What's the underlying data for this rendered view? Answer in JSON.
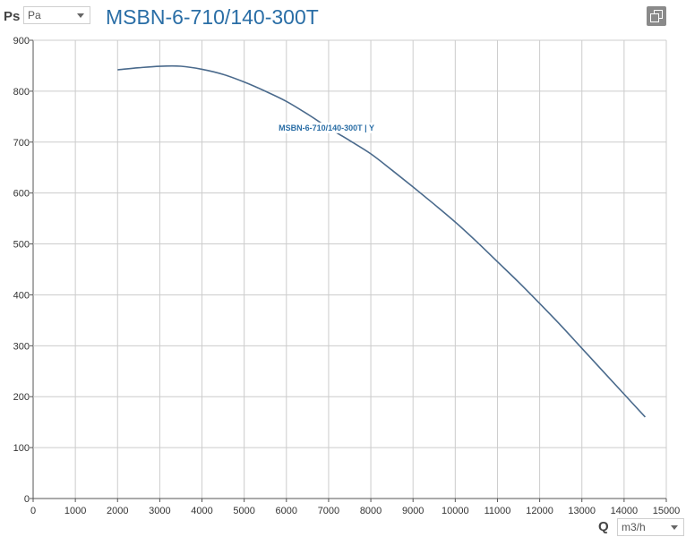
{
  "header": {
    "y_axis_name": "Ps",
    "y_unit": "Pa",
    "title": "MSBN-6-710/140-300T",
    "copy_icon": "copy-icon"
  },
  "footer": {
    "x_axis_name": "Q",
    "x_unit": "m3/h"
  },
  "chart_data": {
    "type": "line",
    "title": "MSBN-6-710/140-300T",
    "xlabel": "Q",
    "ylabel": "Ps",
    "xlim": [
      0,
      15000
    ],
    "ylim": [
      0,
      900
    ],
    "x_ticks": [
      0,
      1000,
      2000,
      3000,
      4000,
      5000,
      6000,
      7000,
      8000,
      9000,
      10000,
      11000,
      12000,
      13000,
      14000,
      15000
    ],
    "y_ticks": [
      0,
      100,
      200,
      300,
      400,
      500,
      600,
      700,
      800,
      900
    ],
    "grid": true,
    "series": [
      {
        "name": "MSBN-6-710/140-300T | Y",
        "color": "#4a6a8c",
        "x": [
          2000,
          2500,
          3000,
          3500,
          4000,
          4500,
          5000,
          5500,
          6000,
          6500,
          7000,
          7500,
          8000,
          8500,
          9000,
          9500,
          10000,
          10500,
          11000,
          11500,
          12000,
          12500,
          13000,
          13500,
          14000,
          14500
        ],
        "y": [
          842,
          846,
          849,
          849,
          843,
          833,
          818,
          800,
          780,
          755,
          728,
          703,
          677,
          645,
          612,
          578,
          543,
          505,
          465,
          425,
          383,
          340,
          295,
          250,
          205,
          160
        ]
      }
    ]
  }
}
